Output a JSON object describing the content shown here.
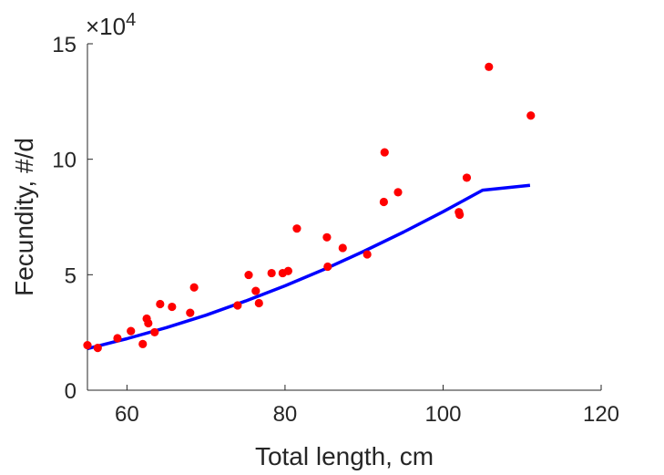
{
  "chart_data": {
    "type": "scatter",
    "xlabel": "Total length, cm",
    "ylabel": "Fecundity, #/d",
    "xlim": [
      55,
      120
    ],
    "ylim": [
      0,
      150000
    ],
    "xticks": [
      60,
      80,
      100,
      120
    ],
    "yticks": [
      0,
      50000,
      100000,
      150000
    ],
    "xtick_labels": [
      "60",
      "80",
      "100",
      "120"
    ],
    "ytick_labels": [
      "0",
      "5",
      "10",
      "15"
    ],
    "y_exponent_multiplier": "×10",
    "y_exponent_power": "4",
    "grid": false,
    "series": [
      {
        "type": "scatter",
        "color": "#ff0000",
        "points": [
          [
            55,
            19500
          ],
          [
            56.3,
            18300
          ],
          [
            58.8,
            22500
          ],
          [
            60.5,
            25600
          ],
          [
            62,
            20000
          ],
          [
            62.5,
            31000
          ],
          [
            62.7,
            29000
          ],
          [
            63.5,
            25100
          ],
          [
            64.2,
            37300
          ],
          [
            65.7,
            36100
          ],
          [
            68,
            33500
          ],
          [
            68.5,
            44500
          ],
          [
            74,
            36700
          ],
          [
            75.4,
            49900
          ],
          [
            76.3,
            43000
          ],
          [
            76.7,
            37700
          ],
          [
            78.3,
            50700
          ],
          [
            79.7,
            50700
          ],
          [
            80.4,
            51600
          ],
          [
            81.5,
            70000
          ],
          [
            85.3,
            66200
          ],
          [
            85.4,
            53500
          ],
          [
            87.3,
            61600
          ],
          [
            90.4,
            58800
          ],
          [
            92.5,
            81500
          ],
          [
            92.6,
            103000
          ],
          [
            94.3,
            85700
          ],
          [
            102,
            77100
          ],
          [
            102.1,
            76000
          ],
          [
            103,
            92000
          ],
          [
            105.8,
            140000
          ],
          [
            111.1,
            118900
          ]
        ]
      },
      {
        "type": "line",
        "color": "#0000ff",
        "x": [
          55,
          60,
          65,
          70,
          75,
          80,
          85,
          90,
          95,
          100,
          105,
          111
        ],
        "y": [
          18000,
          22300,
          27100,
          32500,
          38600,
          45200,
          52400,
          60200,
          68500,
          77300,
          86600,
          88700
        ]
      }
    ]
  }
}
